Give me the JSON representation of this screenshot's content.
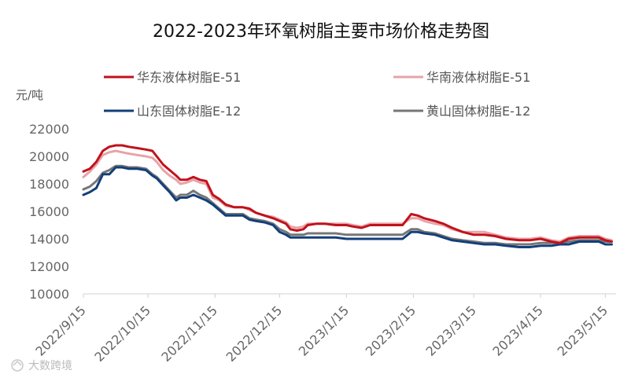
{
  "chart_data": {
    "type": "line",
    "title": "2022-2023年环氧树脂主要市场价格走势图",
    "ylabel": "元/吨",
    "xlabel": "",
    "ylim": [
      10000,
      22000
    ],
    "yticks": [
      10000,
      12000,
      14000,
      16000,
      18000,
      20000,
      22000
    ],
    "xlim": [
      "2022-09-15",
      "2023-05-20"
    ],
    "xticks": [
      "2022/9/15",
      "2022/10/15",
      "2022/11/15",
      "2022/12/15",
      "2023/1/15",
      "2023/2/15",
      "2023/3/15",
      "2023/4/15",
      "2023/5/15"
    ],
    "xtick_dates": [
      "2022-09-15",
      "2022-10-15",
      "2022-11-15",
      "2022-12-15",
      "2023-01-15",
      "2023-02-15",
      "2023-03-15",
      "2023-04-15",
      "2023-05-15"
    ],
    "grid": false,
    "legend_position": "top",
    "series": [
      {
        "name": "华东液体树脂E-51",
        "color": "#c0121c",
        "points": [
          [
            "2022-09-15",
            18900
          ],
          [
            "2022-09-18",
            19100
          ],
          [
            "2022-09-21",
            19600
          ],
          [
            "2022-09-24",
            20400
          ],
          [
            "2022-09-27",
            20700
          ],
          [
            "2022-09-30",
            20800
          ],
          [
            "2022-10-03",
            20800
          ],
          [
            "2022-10-06",
            20700
          ],
          [
            "2022-10-10",
            20600
          ],
          [
            "2022-10-14",
            20500
          ],
          [
            "2022-10-17",
            20400
          ],
          [
            "2022-10-19",
            20000
          ],
          [
            "2022-10-22",
            19400
          ],
          [
            "2022-10-25",
            19000
          ],
          [
            "2022-10-28",
            18600
          ],
          [
            "2022-10-30",
            18300
          ],
          [
            "2022-11-02",
            18300
          ],
          [
            "2022-11-05",
            18500
          ],
          [
            "2022-11-08",
            18300
          ],
          [
            "2022-11-11",
            18200
          ],
          [
            "2022-11-14",
            17200
          ],
          [
            "2022-11-17",
            16900
          ],
          [
            "2022-11-20",
            16500
          ],
          [
            "2022-11-24",
            16300
          ],
          [
            "2022-11-28",
            16300
          ],
          [
            "2022-12-01",
            16200
          ],
          [
            "2022-12-04",
            15900
          ],
          [
            "2022-12-08",
            15700
          ],
          [
            "2022-12-12",
            15500
          ],
          [
            "2022-12-15",
            15300
          ],
          [
            "2022-12-18",
            15100
          ],
          [
            "2022-12-20",
            14700
          ],
          [
            "2022-12-23",
            14600
          ],
          [
            "2022-12-26",
            14700
          ],
          [
            "2022-12-28",
            15000
          ],
          [
            "2023-01-01",
            15100
          ],
          [
            "2023-01-05",
            15100
          ],
          [
            "2023-01-10",
            15000
          ],
          [
            "2023-01-15",
            15000
          ],
          [
            "2023-01-18",
            14900
          ],
          [
            "2023-01-22",
            14800
          ],
          [
            "2023-01-26",
            15000
          ],
          [
            "2023-02-01",
            15000
          ],
          [
            "2023-02-05",
            15000
          ],
          [
            "2023-02-10",
            15000
          ],
          [
            "2023-02-14",
            15800
          ],
          [
            "2023-02-17",
            15700
          ],
          [
            "2023-02-20",
            15500
          ],
          [
            "2023-02-25",
            15300
          ],
          [
            "2023-03-01",
            15100
          ],
          [
            "2023-03-05",
            14800
          ],
          [
            "2023-03-10",
            14500
          ],
          [
            "2023-03-15",
            14300
          ],
          [
            "2023-03-20",
            14300
          ],
          [
            "2023-03-25",
            14200
          ],
          [
            "2023-03-30",
            14000
          ],
          [
            "2023-04-05",
            13900
          ],
          [
            "2023-04-10",
            13900
          ],
          [
            "2023-04-15",
            14000
          ],
          [
            "2023-04-20",
            13800
          ],
          [
            "2023-04-24",
            13700
          ],
          [
            "2023-04-28",
            14000
          ],
          [
            "2023-05-03",
            14100
          ],
          [
            "2023-05-08",
            14100
          ],
          [
            "2023-05-12",
            14100
          ],
          [
            "2023-05-15",
            13900
          ],
          [
            "2023-05-18",
            13800
          ]
        ]
      },
      {
        "name": "华南液体树脂E-51",
        "color": "#e8a3a8",
        "points": [
          [
            "2022-09-15",
            18500
          ],
          [
            "2022-09-18",
            18900
          ],
          [
            "2022-09-21",
            19400
          ],
          [
            "2022-09-24",
            20100
          ],
          [
            "2022-09-27",
            20300
          ],
          [
            "2022-09-30",
            20400
          ],
          [
            "2022-10-03",
            20300
          ],
          [
            "2022-10-06",
            20200
          ],
          [
            "2022-10-10",
            20100
          ],
          [
            "2022-10-14",
            20000
          ],
          [
            "2022-10-17",
            19900
          ],
          [
            "2022-10-19",
            19600
          ],
          [
            "2022-10-22",
            19000
          ],
          [
            "2022-10-25",
            18600
          ],
          [
            "2022-10-28",
            18300
          ],
          [
            "2022-10-30",
            18000
          ],
          [
            "2022-11-02",
            18100
          ],
          [
            "2022-11-05",
            18300
          ],
          [
            "2022-11-08",
            18100
          ],
          [
            "2022-11-11",
            18000
          ],
          [
            "2022-11-14",
            17000
          ],
          [
            "2022-11-17",
            16800
          ],
          [
            "2022-11-20",
            16400
          ],
          [
            "2022-11-24",
            16300
          ],
          [
            "2022-11-28",
            16300
          ],
          [
            "2022-12-01",
            16100
          ],
          [
            "2022-12-04",
            15900
          ],
          [
            "2022-12-08",
            15700
          ],
          [
            "2022-12-12",
            15600
          ],
          [
            "2022-12-15",
            15400
          ],
          [
            "2022-12-18",
            15200
          ],
          [
            "2022-12-20",
            14900
          ],
          [
            "2022-12-23",
            14800
          ],
          [
            "2022-12-26",
            14900
          ],
          [
            "2022-12-28",
            15100
          ],
          [
            "2023-01-01",
            15100
          ],
          [
            "2023-01-05",
            15100
          ],
          [
            "2023-01-10",
            15100
          ],
          [
            "2023-01-15",
            15100
          ],
          [
            "2023-01-18",
            15000
          ],
          [
            "2023-01-22",
            14900
          ],
          [
            "2023-01-26",
            15100
          ],
          [
            "2023-02-01",
            15100
          ],
          [
            "2023-02-05",
            15100
          ],
          [
            "2023-02-10",
            15100
          ],
          [
            "2023-02-14",
            15500
          ],
          [
            "2023-02-17",
            15500
          ],
          [
            "2023-02-20",
            15300
          ],
          [
            "2023-02-25",
            15100
          ],
          [
            "2023-03-01",
            15000
          ],
          [
            "2023-03-05",
            14700
          ],
          [
            "2023-03-10",
            14500
          ],
          [
            "2023-03-15",
            14500
          ],
          [
            "2023-03-20",
            14500
          ],
          [
            "2023-03-25",
            14300
          ],
          [
            "2023-03-30",
            14100
          ],
          [
            "2023-04-05",
            14000
          ],
          [
            "2023-04-10",
            14000
          ],
          [
            "2023-04-15",
            14100
          ],
          [
            "2023-04-20",
            13900
          ],
          [
            "2023-04-24",
            13800
          ],
          [
            "2023-04-28",
            14100
          ],
          [
            "2023-05-03",
            14200
          ],
          [
            "2023-05-08",
            14200
          ],
          [
            "2023-05-12",
            14200
          ],
          [
            "2023-05-15",
            14000
          ],
          [
            "2023-05-18",
            13900
          ]
        ]
      },
      {
        "name": "山东固体树脂E-12",
        "color": "#133f7a",
        "points": [
          [
            "2022-09-15",
            17200
          ],
          [
            "2022-09-18",
            17400
          ],
          [
            "2022-09-21",
            17700
          ],
          [
            "2022-09-24",
            18700
          ],
          [
            "2022-09-27",
            18700
          ],
          [
            "2022-09-30",
            19200
          ],
          [
            "2022-10-03",
            19200
          ],
          [
            "2022-10-06",
            19100
          ],
          [
            "2022-10-10",
            19100
          ],
          [
            "2022-10-14",
            19000
          ],
          [
            "2022-10-17",
            18600
          ],
          [
            "2022-10-19",
            18400
          ],
          [
            "2022-10-22",
            17900
          ],
          [
            "2022-10-25",
            17400
          ],
          [
            "2022-10-28",
            16800
          ],
          [
            "2022-10-30",
            17000
          ],
          [
            "2022-11-02",
            17000
          ],
          [
            "2022-11-05",
            17200
          ],
          [
            "2022-11-08",
            17000
          ],
          [
            "2022-11-11",
            16800
          ],
          [
            "2022-11-14",
            16500
          ],
          [
            "2022-11-17",
            16100
          ],
          [
            "2022-11-20",
            15700
          ],
          [
            "2022-11-24",
            15700
          ],
          [
            "2022-11-28",
            15700
          ],
          [
            "2022-12-01",
            15400
          ],
          [
            "2022-12-04",
            15300
          ],
          [
            "2022-12-08",
            15200
          ],
          [
            "2022-12-12",
            15000
          ],
          [
            "2022-12-15",
            14500
          ],
          [
            "2022-12-18",
            14300
          ],
          [
            "2022-12-20",
            14100
          ],
          [
            "2022-12-23",
            14100
          ],
          [
            "2022-12-26",
            14100
          ],
          [
            "2022-12-28",
            14100
          ],
          [
            "2023-01-01",
            14100
          ],
          [
            "2023-01-05",
            14100
          ],
          [
            "2023-01-10",
            14100
          ],
          [
            "2023-01-15",
            14000
          ],
          [
            "2023-01-18",
            14000
          ],
          [
            "2023-01-22",
            14000
          ],
          [
            "2023-01-26",
            14000
          ],
          [
            "2023-02-01",
            14000
          ],
          [
            "2023-02-05",
            14000
          ],
          [
            "2023-02-10",
            14000
          ],
          [
            "2023-02-14",
            14500
          ],
          [
            "2023-02-17",
            14500
          ],
          [
            "2023-02-20",
            14400
          ],
          [
            "2023-02-25",
            14300
          ],
          [
            "2023-03-01",
            14100
          ],
          [
            "2023-03-05",
            13900
          ],
          [
            "2023-03-10",
            13800
          ],
          [
            "2023-03-15",
            13700
          ],
          [
            "2023-03-20",
            13600
          ],
          [
            "2023-03-25",
            13600
          ],
          [
            "2023-03-30",
            13500
          ],
          [
            "2023-04-05",
            13400
          ],
          [
            "2023-04-10",
            13400
          ],
          [
            "2023-04-15",
            13500
          ],
          [
            "2023-04-20",
            13500
          ],
          [
            "2023-04-24",
            13600
          ],
          [
            "2023-04-28",
            13600
          ],
          [
            "2023-05-03",
            13800
          ],
          [
            "2023-05-08",
            13800
          ],
          [
            "2023-05-12",
            13800
          ],
          [
            "2023-05-15",
            13600
          ],
          [
            "2023-05-18",
            13600
          ]
        ]
      },
      {
        "name": "黄山固体树脂E-12",
        "color": "#767676",
        "points": [
          [
            "2022-09-15",
            17600
          ],
          [
            "2022-09-18",
            17800
          ],
          [
            "2022-09-21",
            18200
          ],
          [
            "2022-09-24",
            18800
          ],
          [
            "2022-09-27",
            19000
          ],
          [
            "2022-09-30",
            19300
          ],
          [
            "2022-10-03",
            19300
          ],
          [
            "2022-10-06",
            19200
          ],
          [
            "2022-10-10",
            19200
          ],
          [
            "2022-10-14",
            19100
          ],
          [
            "2022-10-17",
            18700
          ],
          [
            "2022-10-19",
            18500
          ],
          [
            "2022-10-22",
            18000
          ],
          [
            "2022-10-25",
            17500
          ],
          [
            "2022-10-28",
            17000
          ],
          [
            "2022-10-30",
            17200
          ],
          [
            "2022-11-02",
            17200
          ],
          [
            "2022-11-05",
            17500
          ],
          [
            "2022-11-08",
            17200
          ],
          [
            "2022-11-11",
            17000
          ],
          [
            "2022-11-14",
            16600
          ],
          [
            "2022-11-17",
            16200
          ],
          [
            "2022-11-20",
            15800
          ],
          [
            "2022-11-24",
            15800
          ],
          [
            "2022-11-28",
            15800
          ],
          [
            "2022-12-01",
            15500
          ],
          [
            "2022-12-04",
            15400
          ],
          [
            "2022-12-08",
            15300
          ],
          [
            "2022-12-12",
            15100
          ],
          [
            "2022-12-15",
            14700
          ],
          [
            "2022-12-18",
            14500
          ],
          [
            "2022-12-20",
            14300
          ],
          [
            "2022-12-23",
            14300
          ],
          [
            "2022-12-26",
            14300
          ],
          [
            "2022-12-28",
            14400
          ],
          [
            "2023-01-01",
            14400
          ],
          [
            "2023-01-05",
            14400
          ],
          [
            "2023-01-10",
            14400
          ],
          [
            "2023-01-15",
            14300
          ],
          [
            "2023-01-18",
            14300
          ],
          [
            "2023-01-22",
            14300
          ],
          [
            "2023-01-26",
            14300
          ],
          [
            "2023-02-01",
            14300
          ],
          [
            "2023-02-05",
            14300
          ],
          [
            "2023-02-10",
            14300
          ],
          [
            "2023-02-14",
            14700
          ],
          [
            "2023-02-17",
            14700
          ],
          [
            "2023-02-20",
            14500
          ],
          [
            "2023-02-25",
            14400
          ],
          [
            "2023-03-01",
            14200
          ],
          [
            "2023-03-05",
            14000
          ],
          [
            "2023-03-10",
            13900
          ],
          [
            "2023-03-15",
            13800
          ],
          [
            "2023-03-20",
            13700
          ],
          [
            "2023-03-25",
            13700
          ],
          [
            "2023-03-30",
            13600
          ],
          [
            "2023-04-05",
            13600
          ],
          [
            "2023-04-10",
            13600
          ],
          [
            "2023-04-15",
            13700
          ],
          [
            "2023-04-20",
            13700
          ],
          [
            "2023-04-24",
            13700
          ],
          [
            "2023-04-28",
            13800
          ],
          [
            "2023-05-03",
            13900
          ],
          [
            "2023-05-08",
            13900
          ],
          [
            "2023-05-12",
            13900
          ],
          [
            "2023-05-15",
            13800
          ],
          [
            "2023-05-18",
            13800
          ]
        ]
      }
    ]
  },
  "watermark": "大数跨境"
}
